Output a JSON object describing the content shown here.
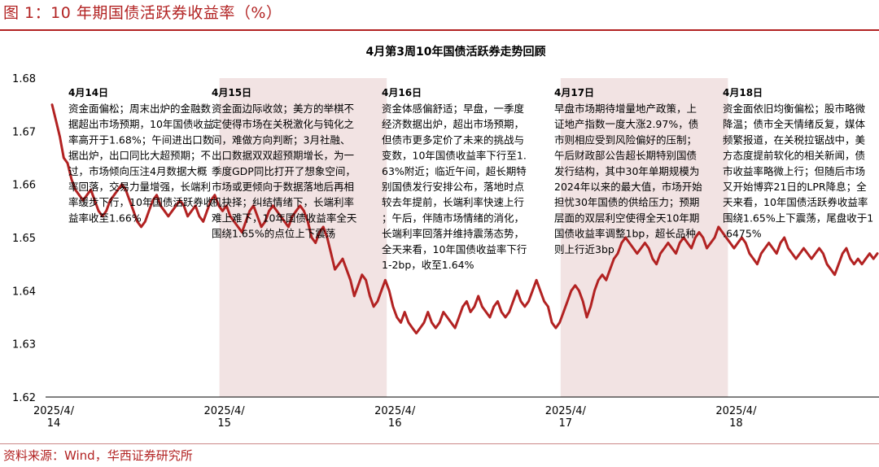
{
  "figure_title": "图 1：10 年期国债活跃券收益率（%）",
  "source": "资料来源：Wind，华西证券研究所",
  "colors": {
    "accent": "#b22222",
    "line": "#b22222",
    "band": "#f2e3e3"
  },
  "chart_data": {
    "type": "line",
    "title": "4月第3周10年国债活跃券走势回顾",
    "xlabel": "",
    "ylabel": "",
    "ylim": [
      1.62,
      1.68
    ],
    "yticks": [
      "1.62",
      "1.63",
      "1.64",
      "1.65",
      "1.66",
      "1.67",
      "1.68"
    ],
    "x_ticks": [
      {
        "label": "2025/4/\n14",
        "day": 0
      },
      {
        "label": "2025/4/\n15",
        "day": 1
      },
      {
        "label": "2025/4/\n16",
        "day": 2
      },
      {
        "label": "2025/4/\n17",
        "day": 3
      },
      {
        "label": "2025/4/\n18",
        "day": 4
      }
    ],
    "grid": false,
    "shaded_days": [
      1,
      3
    ],
    "series": [
      {
        "values": [
          1.675,
          1.672,
          1.669,
          1.665,
          1.664,
          1.661,
          1.659,
          1.658,
          1.657,
          1.658,
          1.659,
          1.657,
          1.655,
          1.654,
          1.655,
          1.657,
          1.658,
          1.659,
          1.66,
          1.659,
          1.657,
          1.655,
          1.653,
          1.652,
          1.653,
          1.655,
          1.657,
          1.658,
          1.656,
          1.655,
          1.654,
          1.655,
          1.656,
          1.657,
          1.656,
          1.654,
          1.655,
          1.656,
          1.654,
          1.653,
          1.655,
          1.657,
          1.658,
          1.656,
          1.655,
          1.656,
          1.654,
          1.653,
          1.652,
          1.651,
          1.653,
          1.655,
          1.656,
          1.654,
          1.652,
          1.653,
          1.655,
          1.656,
          1.655,
          1.654,
          1.653,
          1.652,
          1.654,
          1.655,
          1.656,
          1.655,
          1.653,
          1.65,
          1.649,
          1.651,
          1.652,
          1.65,
          1.647,
          1.644,
          1.645,
          1.646,
          1.644,
          1.642,
          1.639,
          1.641,
          1.643,
          1.642,
          1.639,
          1.637,
          1.638,
          1.64,
          1.642,
          1.64,
          1.637,
          1.635,
          1.634,
          1.636,
          1.634,
          1.633,
          1.632,
          1.633,
          1.634,
          1.636,
          1.634,
          1.633,
          1.634,
          1.636,
          1.635,
          1.634,
          1.633,
          1.635,
          1.637,
          1.638,
          1.636,
          1.637,
          1.639,
          1.637,
          1.636,
          1.635,
          1.637,
          1.638,
          1.636,
          1.635,
          1.636,
          1.638,
          1.64,
          1.638,
          1.637,
          1.638,
          1.64,
          1.642,
          1.64,
          1.638,
          1.637,
          1.634,
          1.633,
          1.634,
          1.636,
          1.638,
          1.64,
          1.641,
          1.64,
          1.638,
          1.635,
          1.637,
          1.64,
          1.642,
          1.643,
          1.642,
          1.644,
          1.646,
          1.647,
          1.649,
          1.65,
          1.649,
          1.648,
          1.647,
          1.648,
          1.649,
          1.648,
          1.646,
          1.645,
          1.647,
          1.648,
          1.649,
          1.648,
          1.647,
          1.649,
          1.65,
          1.649,
          1.648,
          1.65,
          1.651,
          1.65,
          1.648,
          1.649,
          1.65,
          1.652,
          1.651,
          1.65,
          1.649,
          1.648,
          1.649,
          1.65,
          1.649,
          1.647,
          1.646,
          1.645,
          1.647,
          1.648,
          1.649,
          1.648,
          1.647,
          1.649,
          1.65,
          1.648,
          1.647,
          1.646,
          1.647,
          1.648,
          1.647,
          1.646,
          1.647,
          1.648,
          1.647,
          1.645,
          1.644,
          1.643,
          1.645,
          1.647,
          1.648,
          1.646,
          1.645,
          1.646,
          1.645,
          1.646,
          1.647,
          1.646,
          1.647
        ]
      }
    ],
    "annotations": [
      {
        "date": "4月14日",
        "text": "资金面偏松；周末出炉的金融数据超出市场预期，10年国债收益率高开于1.68%；午间进出口数据出炉，出口同比大超预期；不过，市场倾向压注4月数据大概率回落，交易力量增强，长端利率缓步下行，10年国债活跃券收益率收至1.66%"
      },
      {
        "date": "4月15日",
        "text": "资金面边际收敛；美方的举棋不定使得市场在关税激化与钝化之间，难做方向判断；3月社融、出口数据双双超预期增长，为一季度GDP同比打开了想象空间，市场或更倾向于数据落地后再相机抉择；纠结情绪下，长端利率难上难下，10年国债收益率全天围绕1.65%的点位上下震荡"
      },
      {
        "date": "4月16日",
        "text": "资金体感偏舒适；早盘，一季度经济数据出炉，超出市场预期，但债市更多定价了未来的挑战与变数，10年国债收益率下行至1.63%附近；临近午间，超长期特别国债发行安排公布，落地时点较去年提前，长端利率快速上行；午后，伴随市场情绪的消化，长端利率回落并维持震荡态势，全天来看，10年国债收益率下行1-2bp，收至1.64%"
      },
      {
        "date": "4月17日",
        "text": "早盘市场期待增量地产政策，上证地产指数一度大涨2.97%，债市则相应受到风险偏好的压制；午后财政部公告超长期特别国债发行结构，其中30年单期规模为2024年以来的最大值，市场开始担忧30年国债的供给压力；预期层面的双层利空使得全天10年期国债收益率调整1bp，超长品种则上行近3bp"
      },
      {
        "date": "4月18日",
        "text": "资金面依旧均衡偏松；股市略微降温；债市全天情绪反复，媒体频繁报道，在关税拉锯战中，美方态度提前软化的相关新闻，债市收益率略微上行；但随后市场又开始博弈21日的LPR降息；全天来看，10年国债活跃券收益率围绕1.65%上下震荡，尾盘收于1.6475%"
      }
    ]
  }
}
